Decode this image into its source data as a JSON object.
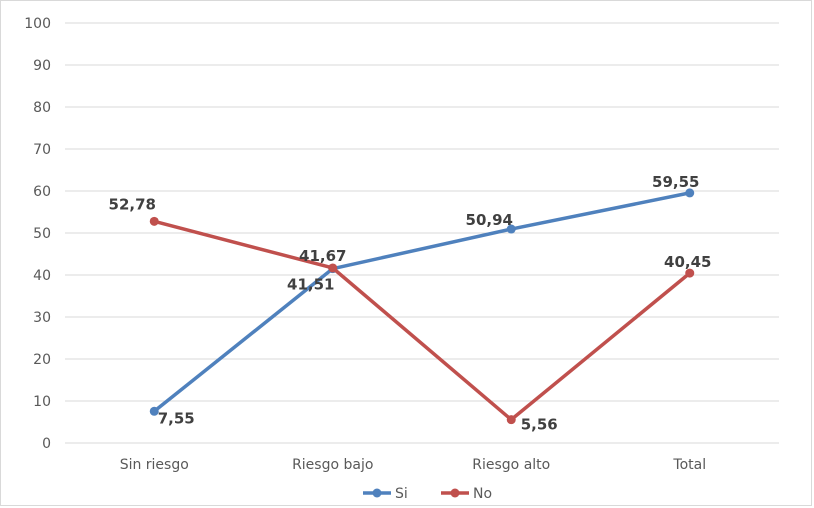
{
  "chart_data": {
    "type": "line",
    "title": "",
    "xlabel": "",
    "ylabel": "",
    "categories": [
      "Sin riesgo",
      "Riesgo bajo",
      "Riesgo alto",
      "Total"
    ],
    "ylim": [
      0,
      100
    ],
    "yticks": [
      "0",
      "10",
      "20",
      "30",
      "40",
      "50",
      "60",
      "70",
      "80",
      "90",
      "100"
    ],
    "grid": true,
    "legend_position": "bottom",
    "series": [
      {
        "name": "Si",
        "color": "#4f81bd",
        "values": [
          7.55,
          41.51,
          50.94,
          59.55
        ],
        "labels": [
          "7,55",
          "41,51",
          "50,94",
          "59,55"
        ]
      },
      {
        "name": "No",
        "color": "#c0504d",
        "values": [
          52.78,
          41.67,
          5.56,
          40.45
        ],
        "labels": [
          "52,78",
          "41,67",
          "5,56",
          "40,45"
        ]
      }
    ]
  }
}
